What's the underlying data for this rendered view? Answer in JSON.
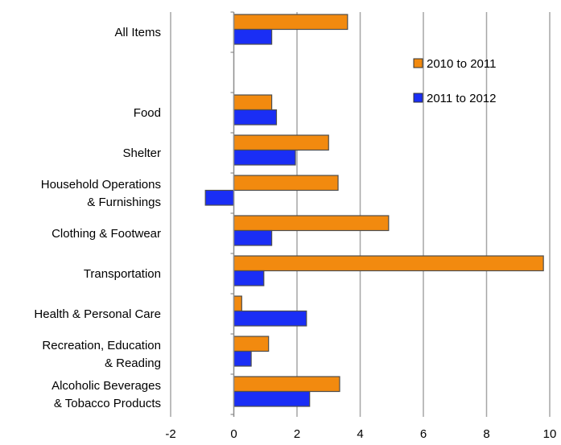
{
  "chart_data": {
    "type": "bar",
    "orientation": "horizontal",
    "xlim": [
      -2,
      10
    ],
    "x_ticks": [
      "-2",
      "0",
      "2",
      "4",
      "6",
      "8",
      "10"
    ],
    "grid": "vertical",
    "legend_position": "top-right",
    "categories": [
      [
        "All Items"
      ],
      [
        ""
      ],
      [
        "Food"
      ],
      [
        "Shelter"
      ],
      [
        "Household Operations",
        "& Furnishings"
      ],
      [
        "Clothing & Footwear"
      ],
      [
        "Transportation"
      ],
      [
        "Health & Personal Care"
      ],
      [
        "Recreation, Education",
        "& Reading"
      ],
      [
        "Alcoholic Beverages",
        "& Tobacco Products"
      ]
    ],
    "series": [
      {
        "name": "2010 to 2011",
        "color": "#F28A0F",
        "values": [
          3.6,
          null,
          1.2,
          3.0,
          3.3,
          4.9,
          9.8,
          0.25,
          1.1,
          3.35
        ]
      },
      {
        "name": "2011 to 2012",
        "color": "#1A2EF5",
        "values": [
          1.2,
          null,
          1.35,
          1.95,
          -0.9,
          1.2,
          0.95,
          2.3,
          0.55,
          2.4
        ]
      }
    ]
  }
}
